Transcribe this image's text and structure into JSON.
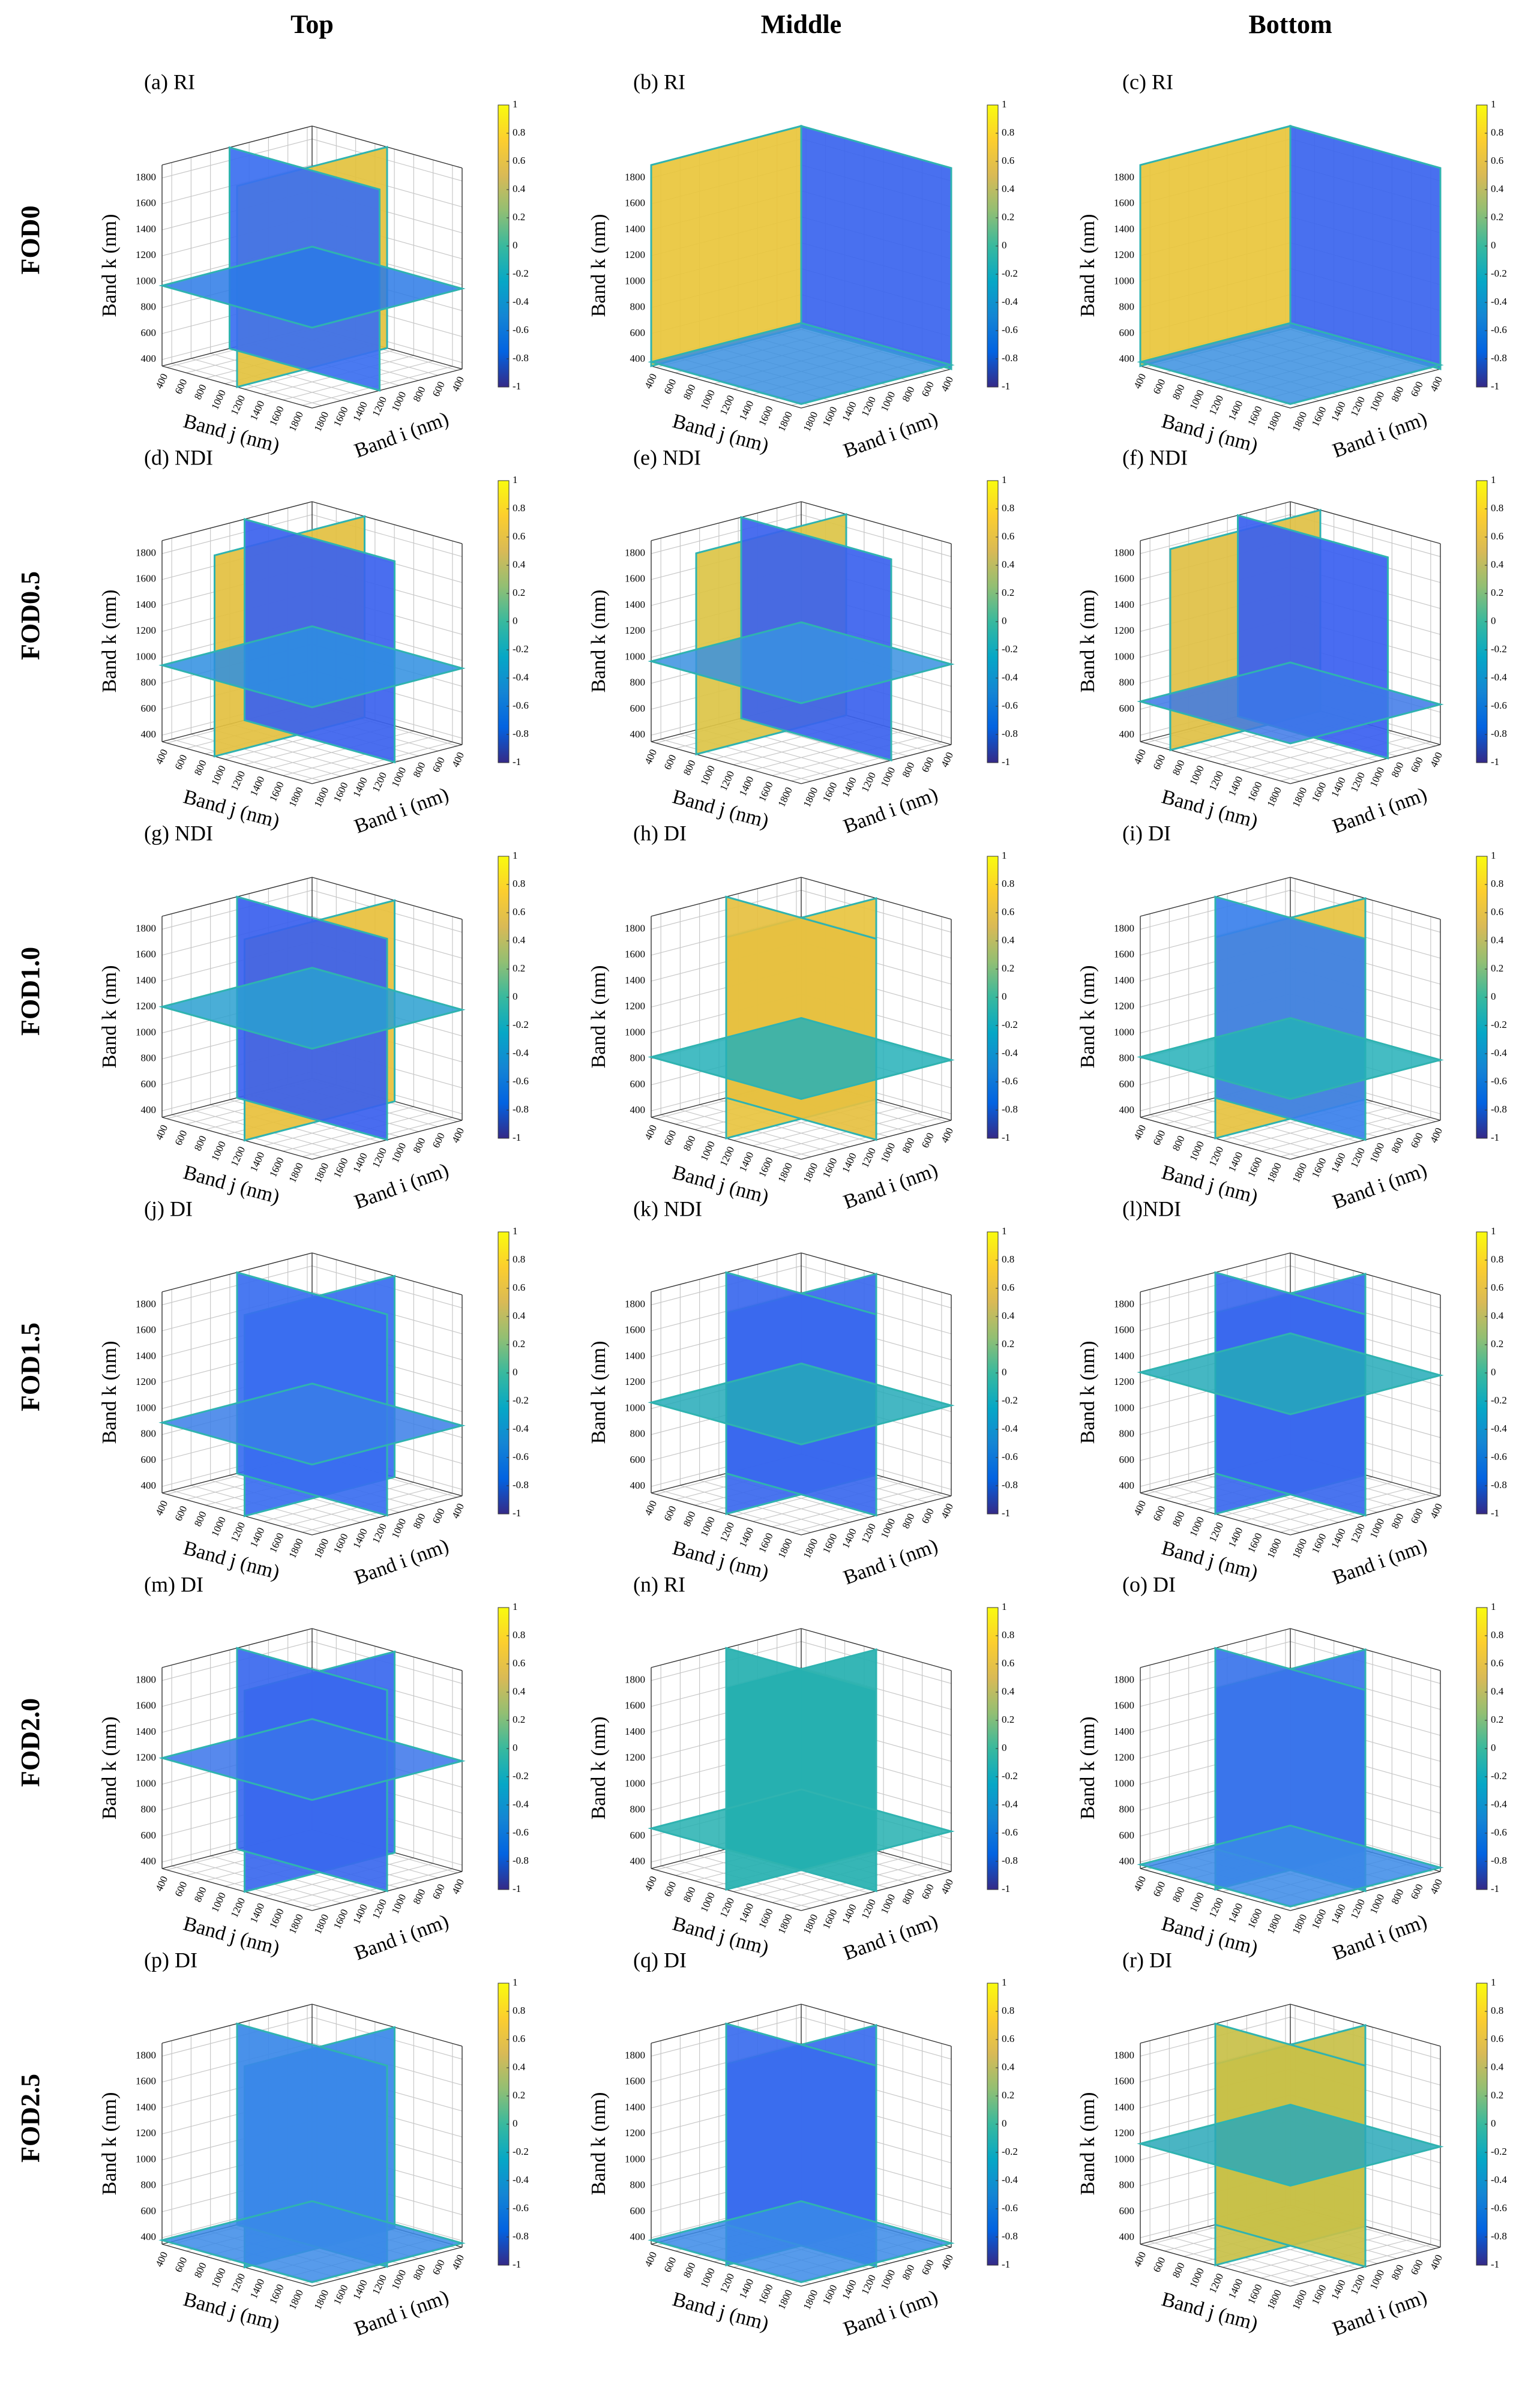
{
  "chart_data": {
    "type": "slice3d",
    "columns": [
      "Top",
      "Middle",
      "Bottom"
    ],
    "rows": [
      "FOD0",
      "FOD0.5",
      "FOD1.0",
      "FOD1.5",
      "FOD2.0",
      "FOD2.5"
    ],
    "axes": {
      "xlabel": "Band j (nm)",
      "ylabel": "Band i (nm)",
      "zlabel": "Band k (nm)",
      "xlim": [
        350,
        1900
      ],
      "xticks": [
        400,
        600,
        800,
        1000,
        1200,
        1400,
        1600,
        1800
      ],
      "ylim": [
        350,
        1900
      ],
      "yticks": [
        400,
        600,
        800,
        1000,
        1200,
        1400,
        1600,
        1800
      ],
      "zlim": [
        350,
        1900
      ],
      "zticks": [
        400,
        600,
        800,
        1000,
        1200,
        1400,
        1600,
        1800
      ],
      "grid": true
    },
    "colorbar": {
      "lim": [
        -1,
        1
      ],
      "ticks": [
        1,
        0.8,
        0.6,
        0.4,
        0.2,
        0,
        -0.2,
        -0.4,
        -0.6,
        -0.8,
        -1
      ],
      "colors": [
        "#352a87",
        "#0363e1",
        "#1485d4",
        "#06a7c6",
        "#38b99e",
        "#92bf73",
        "#d9ba56",
        "#fcce2e",
        "#f9fb0e"
      ]
    },
    "panels": [
      {
        "label": "(a) RI",
        "slice_colors": [
          "#2b7ae6",
          "#e3c23e",
          "#3b6ff0"
        ]
      },
      {
        "label": "(b) RI",
        "slice_colors": [
          "#3a8fe0",
          "#e9c53b",
          "#3a64ee"
        ]
      },
      {
        "label": "(c) RI",
        "slice_colors": [
          "#3a8fe0",
          "#e9c53b",
          "#3a64ee"
        ]
      },
      {
        "label": "(d) NDI",
        "slice_colors": [
          "#2e8ee0",
          "#e3c040",
          "#3b62ee"
        ]
      },
      {
        "label": "(e) NDI",
        "slice_colors": [
          "#3a90e0",
          "#dcc446",
          "#3b62ee"
        ]
      },
      {
        "label": "(f) NDI",
        "slice_colors": [
          "#3c78e8",
          "#e0c044",
          "#3a5ff0"
        ]
      },
      {
        "label": "(g) NDI",
        "slice_colors": [
          "#2aa0d0",
          "#e8c03c",
          "#3a60ee"
        ]
      },
      {
        "label": "(h) DI",
        "slice_colors": [
          "#25b0b8",
          "#e8c440",
          "#e6c040"
        ]
      },
      {
        "label": "(i) DI",
        "slice_colors": [
          "#25b0b8",
          "#e6c240",
          "#3a80ec"
        ]
      },
      {
        "label": "(j) DI",
        "slice_colors": [
          "#3a7ee8",
          "#3a6ef0",
          "#3a6ef0"
        ]
      },
      {
        "label": "(k) NDI",
        "slice_colors": [
          "#25aab8",
          "#3a68ee",
          "#3a68ee"
        ]
      },
      {
        "label": "(l)NDI",
        "slice_colors": [
          "#25aab8",
          "#3a68ee",
          "#3a68ee"
        ]
      },
      {
        "label": "(m) DI",
        "slice_colors": [
          "#3a74ea",
          "#3a68ee",
          "#3a68ee"
        ]
      },
      {
        "label": "(n) RI",
        "slice_colors": [
          "#25b0b0",
          "#25b0b0",
          "#25b0b0"
        ]
      },
      {
        "label": "(o) DI",
        "slice_colors": [
          "#3a8ae8",
          "#3a74ea",
          "#3a74ea"
        ]
      },
      {
        "label": "(p) DI",
        "slice_colors": [
          "#3a8ae8",
          "#3a88e8",
          "#3a88e8"
        ]
      },
      {
        "label": "(q) DI",
        "slice_colors": [
          "#3a8ae8",
          "#3a6cee",
          "#3a6cee"
        ]
      },
      {
        "label": "(r) DI",
        "slice_colors": [
          "#2aa8b8",
          "#c8c048",
          "#c8c048"
        ]
      }
    ]
  }
}
